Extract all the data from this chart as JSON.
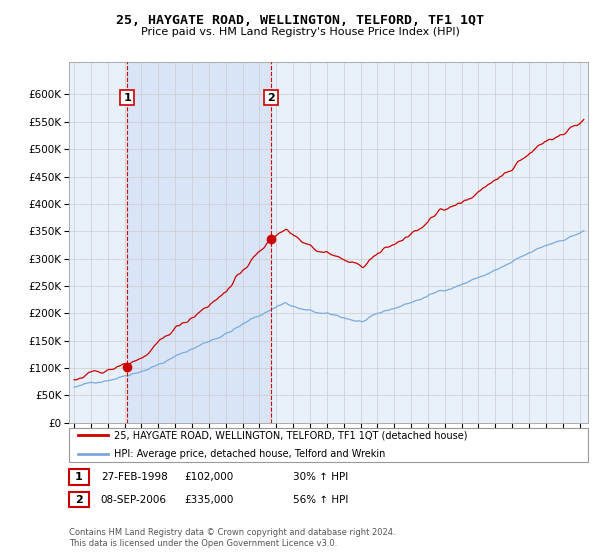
{
  "title": "25, HAYGATE ROAD, WELLINGTON, TELFORD, TF1 1QT",
  "subtitle": "Price paid vs. HM Land Registry's House Price Index (HPI)",
  "ylim": [
    0,
    660000
  ],
  "yticks": [
    0,
    50000,
    100000,
    150000,
    200000,
    250000,
    300000,
    350000,
    400000,
    450000,
    500000,
    550000,
    600000
  ],
  "xlim_start": 1994.7,
  "xlim_end": 2025.5,
  "sale1_x": 1998.15,
  "sale1_y": 102000,
  "sale1_label": "1",
  "sale1_date": "27-FEB-1998",
  "sale1_price": "£102,000",
  "sale1_hpi": "30% ↑ HPI",
  "sale2_x": 2006.69,
  "sale2_y": 335000,
  "sale2_label": "2",
  "sale2_date": "08-SEP-2006",
  "sale2_price": "£335,000",
  "sale2_hpi": "56% ↑ HPI",
  "legend_line1": "25, HAYGATE ROAD, WELLINGTON, TELFORD, TF1 1QT (detached house)",
  "legend_line2": "HPI: Average price, detached house, Telford and Wrekin",
  "footer": "Contains HM Land Registry data © Crown copyright and database right 2024.\nThis data is licensed under the Open Government Licence v3.0.",
  "line_color_red": "#cc0000",
  "line_color_blue": "#7aaadd",
  "vline_color": "#cc0000",
  "grid_color": "#cccccc",
  "background_chart": "#e8f0fa",
  "shade_color": "#d0dff5",
  "marker_color_red": "#cc0000"
}
